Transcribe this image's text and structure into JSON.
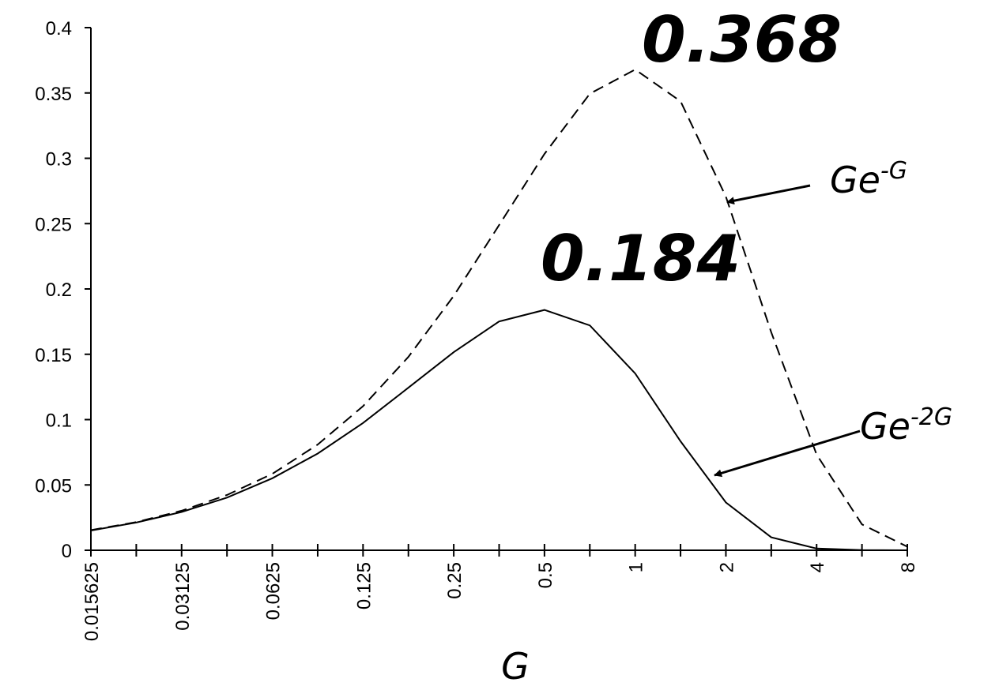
{
  "chart_data": {
    "type": "line",
    "xlabel": "G",
    "ylabel": "",
    "x_scale": "log2",
    "x_tick_labels": [
      "0.015625",
      "0.03125",
      "0.0625",
      "0.125",
      "0.25",
      "0.5",
      "1",
      "2",
      "4",
      "8"
    ],
    "y_tick_labels": [
      "0",
      "0.05",
      "0.1",
      "0.15",
      "0.2",
      "0.25",
      "0.3",
      "0.35",
      "0.4"
    ],
    "ylim": [
      0,
      0.4
    ],
    "xlim": [
      0.015625,
      8
    ],
    "grid": false,
    "x": [
      0.015625,
      0.0221,
      0.03125,
      0.0442,
      0.0625,
      0.0884,
      0.125,
      0.1768,
      0.25,
      0.3536,
      0.5,
      0.7071,
      1,
      1.4142,
      2,
      2.8284,
      4,
      5.6569,
      8
    ],
    "series": [
      {
        "name": "Ge",
        "name_sup": "-G",
        "style": "dashed",
        "values": [
          0.0154,
          0.0216,
          0.0303,
          0.0423,
          0.0585,
          0.0809,
          0.1103,
          0.148,
          0.1947,
          0.2489,
          0.3033,
          0.3494,
          0.3679,
          0.3436,
          0.2707,
          0.1669,
          0.0733,
          0.0198,
          0.0027
        ]
      },
      {
        "name": "Ge",
        "name_sup": "-2G",
        "style": "solid",
        "values": [
          0.0151,
          0.0212,
          0.0293,
          0.0403,
          0.0551,
          0.074,
          0.0974,
          0.1244,
          0.1516,
          0.1751,
          0.1839,
          0.1721,
          0.1353,
          0.0834,
          0.0366,
          0.0099,
          0.0013,
          0.0001,
          0.0
        ]
      }
    ],
    "annotations": [
      {
        "text": "0.368",
        "x": 1,
        "y": 0.3679
      },
      {
        "text": "0.184",
        "x": 0.5,
        "y": 0.1839
      }
    ]
  }
}
